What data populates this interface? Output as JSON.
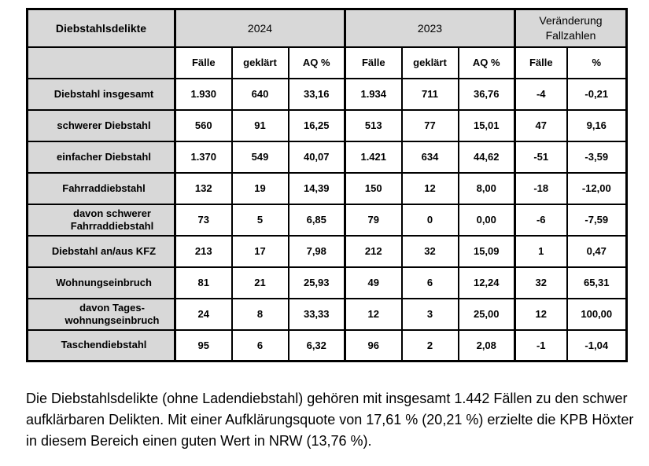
{
  "table": {
    "title": "Diebstahlsdelikte",
    "year_groups": {
      "y2024": "2024",
      "y2023": "2023",
      "change": "Veränderung\nFallzahlen"
    },
    "sub_headers": [
      "Fälle",
      "geklärt",
      "AQ %",
      "Fälle",
      "geklärt",
      "AQ %",
      "Fälle",
      "%"
    ],
    "rows": [
      {
        "label": "Diebstahl insgesamt",
        "indent": false,
        "values": [
          "1.930",
          "640",
          "33,16",
          "1.934",
          "711",
          "36,76",
          "-4",
          "-0,21"
        ]
      },
      {
        "label": "schwerer Diebstahl",
        "indent": false,
        "values": [
          "560",
          "91",
          "16,25",
          "513",
          "77",
          "15,01",
          "47",
          "9,16"
        ]
      },
      {
        "label": "einfacher Diebstahl",
        "indent": false,
        "values": [
          "1.370",
          "549",
          "40,07",
          "1.421",
          "634",
          "44,62",
          "-51",
          "-3,59"
        ]
      },
      {
        "label": "Fahrraddiebstahl",
        "indent": false,
        "values": [
          "132",
          "19",
          "14,39",
          "150",
          "12",
          "8,00",
          "-18",
          "-12,00"
        ]
      },
      {
        "label": "davon schwerer\nFahrraddiebstahl",
        "indent": true,
        "values": [
          "73",
          "5",
          "6,85",
          "79",
          "0",
          "0,00",
          "-6",
          "-7,59"
        ]
      },
      {
        "label": "Diebstahl an/aus KFZ",
        "indent": false,
        "values": [
          "213",
          "17",
          "7,98",
          "212",
          "32",
          "15,09",
          "1",
          "0,47"
        ]
      },
      {
        "label": "Wohnungseinbruch",
        "indent": false,
        "values": [
          "81",
          "21",
          "25,93",
          "49",
          "6",
          "12,24",
          "32",
          "65,31"
        ]
      },
      {
        "label": "davon Tages-\nwohnungseinbruch",
        "indent": true,
        "values": [
          "24",
          "8",
          "33,33",
          "12",
          "3",
          "25,00",
          "12",
          "100,00"
        ]
      },
      {
        "label": "Taschendiebstahl",
        "indent": false,
        "values": [
          "95",
          "6",
          "6,32",
          "96",
          "2",
          "2,08",
          "-1",
          "-1,04"
        ]
      }
    ]
  },
  "footer": {
    "text": "Die Diebstahlsdelikte (ohne Ladendiebstahl) gehören mit insgesamt 1.442 Fällen zu den schwer aufklärbaren Delikten. Mit einer Aufklärungsquote von 17,61 % (20,21 %) erzielte die KPB Höxter in diesem Bereich einen guten Wert in NRW (13,76 %)."
  },
  "colors": {
    "header_bg": "#d8d8d8",
    "border": "#000000",
    "cell_bg": "#ffffff"
  }
}
